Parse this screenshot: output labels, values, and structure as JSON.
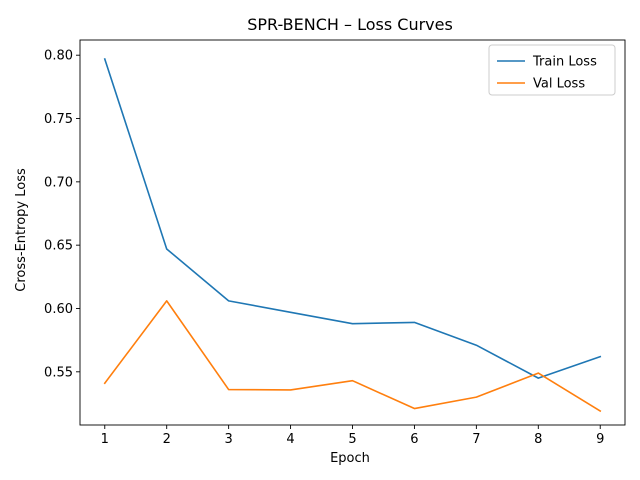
{
  "chart_data": {
    "type": "line",
    "title": "SPR-BENCH – Loss Curves",
    "xlabel": "Epoch",
    "ylabel": "Cross-Entropy Loss",
    "x": [
      1,
      2,
      3,
      4,
      5,
      6,
      7,
      8,
      9
    ],
    "xlim": [
      0.6,
      9.4
    ],
    "ylim": [
      0.508,
      0.812
    ],
    "xticks": [
      1,
      2,
      3,
      4,
      5,
      6,
      7,
      8,
      9
    ],
    "yticks": [
      0.55,
      0.6,
      0.65,
      0.7,
      0.75,
      0.8
    ],
    "grid": false,
    "legend_position": "top-right",
    "series": [
      {
        "name": "Train Loss",
        "color": "#1f77b4",
        "values": [
          0.797,
          0.647,
          0.606,
          0.597,
          0.588,
          0.589,
          0.571,
          0.545,
          0.562
        ]
      },
      {
        "name": "Val Loss",
        "color": "#ff7f0e",
        "values": [
          0.541,
          0.606,
          0.536,
          0.5357,
          0.543,
          0.521,
          0.53,
          0.549,
          0.519
        ]
      }
    ]
  }
}
